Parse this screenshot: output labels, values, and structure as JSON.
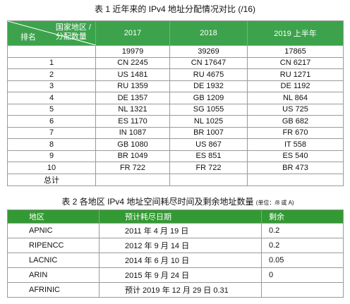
{
  "table1": {
    "title": "表 1  近年来的 IPv4 地址分配情况对比 (/16)",
    "corner": {
      "category_line1": "国家地区 /",
      "category_line2": "分配数量",
      "rank": "排名"
    },
    "columns": [
      "2017",
      "2018",
      "2019 上半年"
    ],
    "rows": [
      [
        null,
        "19979",
        "39269",
        "17865"
      ],
      [
        "1",
        "CN 2245",
        "CN 17647",
        "CN 6217"
      ],
      [
        "2",
        "US 1481",
        "RU 4675",
        "RU 1271"
      ],
      [
        "3",
        "RU 1359",
        "DE 1932",
        "DE 1192"
      ],
      [
        "4",
        "DE 1357",
        "GB 1209",
        "NL 864"
      ],
      [
        "5",
        "NL 1321",
        "SG 1055",
        "US 725"
      ],
      [
        "6",
        "ES 1170",
        "NL 1025",
        "GB 682"
      ],
      [
        "7",
        "IN 1087",
        "BR 1007",
        "FR 670"
      ],
      [
        "8",
        "GB 1080",
        "US 867",
        "IT 558"
      ],
      [
        "9",
        "BR 1049",
        "ES 851",
        "ES 540"
      ],
      [
        "10",
        "FR 722",
        "FR 722",
        "BR 473"
      ],
      [
        "总计",
        null,
        null,
        null
      ]
    ]
  },
  "table2": {
    "title": "表 2  各地区 IPv4 地址空间耗尽时间及剩余地址数量",
    "unit": "(单位：/8 或 A)",
    "columns": [
      "地区",
      "预计耗尽日期",
      "剩余"
    ],
    "rows": [
      [
        "APNIC",
        "2011 年 4 月 19 日",
        "0.2"
      ],
      [
        "RIPENCC",
        "2012 年 9 月 14 日",
        "0.2"
      ],
      [
        "LACNIC",
        "2014 年 6 月 10 日",
        "0.05"
      ],
      [
        "ARIN",
        "2015 年 9 月 24 日",
        "0"
      ],
      [
        "AFRINIC",
        "预计 2019 年 12 月 29 日  0.31",
        null
      ]
    ]
  }
}
